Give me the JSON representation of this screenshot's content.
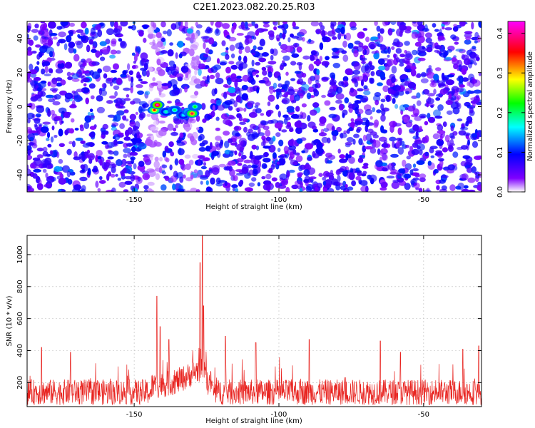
{
  "chart_data": [
    {
      "type": "heatmap",
      "title": "C2E1.2023.082.20.25.R03",
      "xlabel": "Height of straight line (km)",
      "ylabel": "Frequency (Hz)",
      "xlim": [
        -187,
        -30
      ],
      "ylim": [
        -50,
        50
      ],
      "xticks": [
        -150,
        -100,
        -50
      ],
      "yticks": [
        -40,
        -20,
        0,
        20,
        40
      ],
      "colorbar": {
        "label": "Normalized spectral amplitude",
        "range": [
          0.0,
          0.43
        ],
        "ticks": [
          0.0,
          0.1,
          0.2,
          0.3,
          0.4
        ],
        "colors": [
          "#ffffff",
          "#7f00ff",
          "#0000ff",
          "#00ffff",
          "#00ff00",
          "#ffff00",
          "#ff0000",
          "#ff00ff"
        ]
      },
      "background_level": 0.07,
      "low_power_bands": [
        [
          -145,
          -140
        ],
        [
          -132,
          -128
        ]
      ],
      "hotspots": [
        {
          "x": -143,
          "y": -2,
          "value": 0.35
        },
        {
          "x": -142,
          "y": 1,
          "value": 0.43
        },
        {
          "x": -139,
          "y": -3,
          "value": 0.18
        },
        {
          "x": -136,
          "y": -2,
          "value": 0.2
        },
        {
          "x": -133,
          "y": -5,
          "value": 0.16
        },
        {
          "x": -131,
          "y": -3,
          "value": 0.25
        },
        {
          "x": -130,
          "y": -4,
          "value": 0.38
        },
        {
          "x": -129,
          "y": 0,
          "value": 0.22
        }
      ]
    },
    {
      "type": "line",
      "xlabel": "Height of straight line (km)",
      "ylabel": "SNR (10 * v/v)",
      "xlim": [
        -187,
        -30
      ],
      "ylim": [
        50,
        1120
      ],
      "xticks": [
        -150,
        -100,
        -50
      ],
      "yticks": [
        200,
        400,
        600,
        800,
        1000
      ],
      "series": [
        {
          "color": "#e8231f",
          "baseline_mean": 140,
          "baseline_noise": 80,
          "peaks": [
            {
              "x": -142.2,
              "y": 740
            },
            {
              "x": -141,
              "y": 550
            },
            {
              "x": -138,
              "y": 470
            },
            {
              "x": -126.5,
              "y": 1120
            },
            {
              "x": -127.2,
              "y": 950
            },
            {
              "x": -126,
              "y": 680
            },
            {
              "x": -118.5,
              "y": 490
            },
            {
              "x": -108,
              "y": 450
            },
            {
              "x": -89.5,
              "y": 470
            },
            {
              "x": -65,
              "y": 460
            },
            {
              "x": -58,
              "y": 390
            },
            {
              "x": -36.5,
              "y": 410
            },
            {
              "x": -31,
              "y": 430
            },
            {
              "x": -182,
              "y": 420
            },
            {
              "x": -172,
              "y": 390
            }
          ]
        }
      ]
    }
  ]
}
